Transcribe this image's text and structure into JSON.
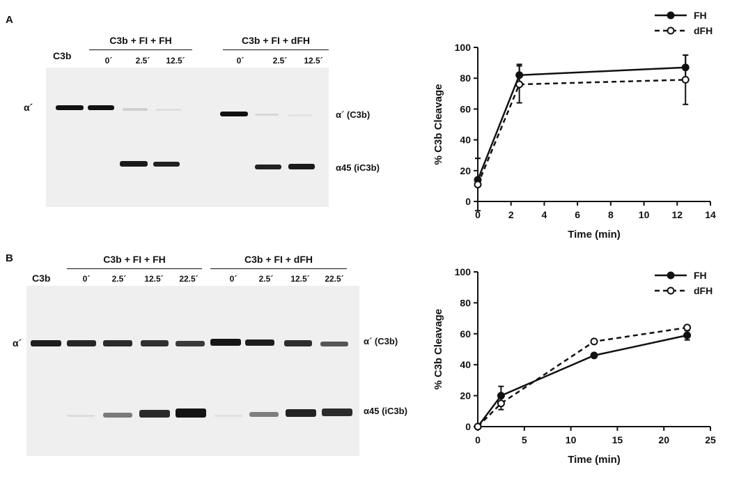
{
  "panels": [
    {
      "letter": "A",
      "gel": {
        "control_label": "C3b",
        "groups": [
          {
            "title": "C3b + FI + FH",
            "lanes": [
              "0´",
              "2.5´",
              "12.5´"
            ]
          },
          {
            "title": "C3b + FI + dFH",
            "lanes": [
              "0´",
              "2.5´",
              "12.5´"
            ]
          }
        ],
        "left_band_label": "α´",
        "right_labels": [
          "α´ (C3b)",
          "α45 (iC3b)"
        ]
      }
    },
    {
      "letter": "B",
      "gel": {
        "control_label": "C3b",
        "groups": [
          {
            "title": "C3b + FI + FH",
            "lanes": [
              "0´",
              "2.5´",
              "12.5´",
              "22.5´"
            ]
          },
          {
            "title": "C3b + FI + dFH",
            "lanes": [
              "0´",
              "2.5´",
              "12.5´",
              "22.5´"
            ]
          }
        ],
        "left_band_label": "α´",
        "right_labels": [
          "α´ (C3b)",
          "α45 (iC3b)"
        ]
      }
    }
  ],
  "chart_data": [
    {
      "type": "line",
      "xlabel": "Time (min)",
      "ylabel": "% C3b Cleavage",
      "xlim": [
        0,
        14
      ],
      "ylim": [
        0,
        100
      ],
      "xticks": [
        0,
        2,
        4,
        6,
        8,
        10,
        12,
        14
      ],
      "yticks": [
        0,
        20,
        40,
        60,
        80,
        100
      ],
      "legend_position": "top-right",
      "grid": false,
      "series": [
        {
          "name": "FH",
          "x": [
            0,
            2.5,
            12.5
          ],
          "y": [
            14,
            82,
            87
          ],
          "err": [
            14,
            7,
            8
          ],
          "marker": "filled-circle",
          "line": "solid"
        },
        {
          "name": "dFH",
          "x": [
            0,
            2.5,
            12.5
          ],
          "y": [
            11,
            76,
            79
          ],
          "err": [
            17,
            12,
            16
          ],
          "marker": "open-circle",
          "line": "dashed"
        }
      ]
    },
    {
      "type": "line",
      "xlabel": "Time (min)",
      "ylabel": "% C3b Cleavage",
      "xlim": [
        0,
        25
      ],
      "ylim": [
        0,
        100
      ],
      "xticks": [
        0,
        5,
        10,
        15,
        20,
        25
      ],
      "yticks": [
        0,
        20,
        40,
        60,
        80,
        100
      ],
      "legend_position": "top-right",
      "grid": false,
      "series": [
        {
          "name": "FH",
          "x": [
            0,
            2.5,
            12.5,
            22.5
          ],
          "y": [
            0,
            20,
            46,
            59
          ],
          "err": [
            0,
            6,
            1,
            3
          ],
          "marker": "filled-circle",
          "line": "solid"
        },
        {
          "name": "dFH",
          "x": [
            0,
            2.5,
            12.5,
            22.5
          ],
          "y": [
            0,
            15,
            55,
            64
          ],
          "err": [
            0,
            4,
            1,
            1
          ],
          "marker": "open-circle",
          "line": "dashed"
        }
      ]
    }
  ]
}
